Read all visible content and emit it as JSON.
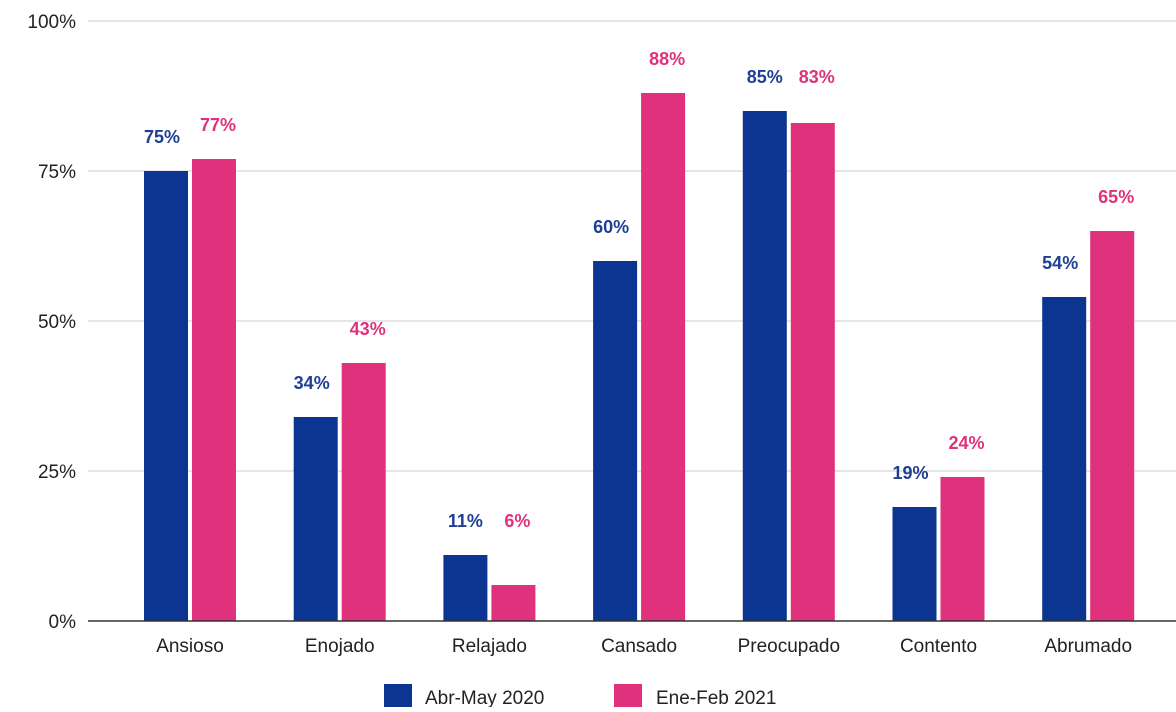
{
  "chart_data": {
    "type": "bar",
    "title": "",
    "xlabel": "",
    "ylabel": "",
    "ylim": [
      0,
      100
    ],
    "y_ticks": [
      0,
      25,
      50,
      75,
      100
    ],
    "y_tick_suffix": "%",
    "grid": true,
    "legend_position": "bottom",
    "categories": [
      "Ansioso",
      "Enojado",
      "Relajado",
      "Cansado",
      "Preocupado",
      "Contento",
      "Abrumado"
    ],
    "series": [
      {
        "name": "Abr-May 2020",
        "color": "#0b3591",
        "label_color": "#1f3f95",
        "values": [
          75,
          34,
          11,
          60,
          85,
          19,
          54
        ],
        "labels": [
          "75%",
          "34%",
          "11%",
          "60%",
          "85%",
          "19%",
          "54%"
        ]
      },
      {
        "name": "Ene-Feb 2021",
        "color": "#e0317c",
        "label_color": "#e0317c",
        "values": [
          77,
          43,
          6,
          88,
          83,
          24,
          65
        ],
        "labels": [
          "77%",
          "43%",
          "6%",
          "88%",
          "83%",
          "24%",
          "65%"
        ]
      }
    ]
  }
}
